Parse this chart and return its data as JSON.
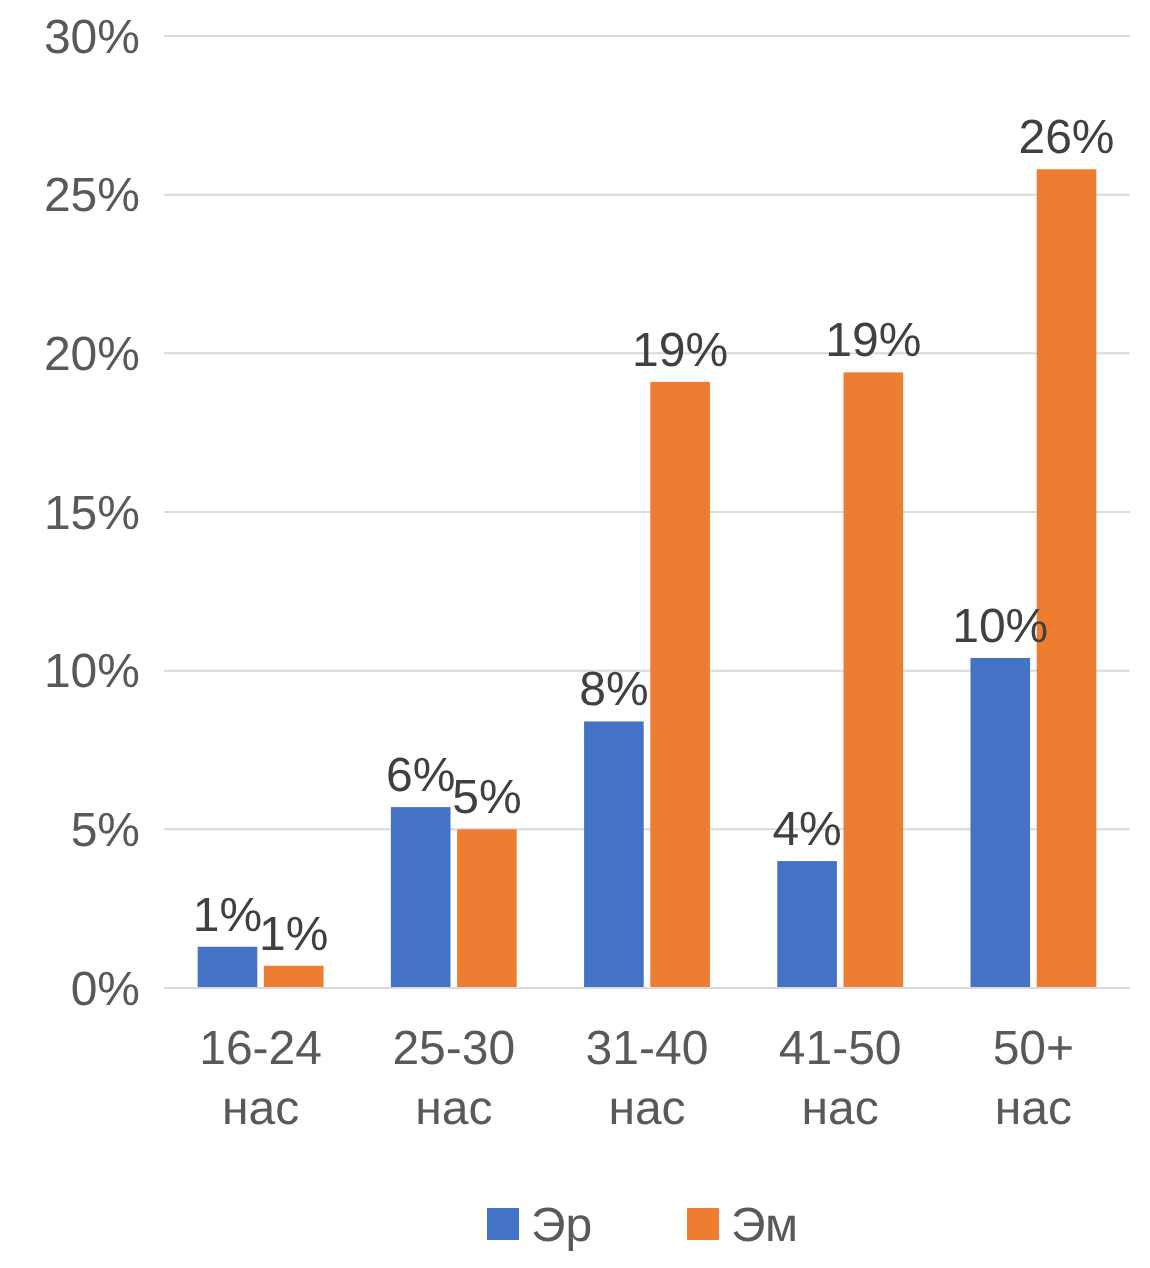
{
  "chart_data": {
    "type": "bar",
    "categories": [
      "16-24 нас",
      "25-30 нас",
      "31-40 нас",
      "41-50 нас",
      "50+ нас"
    ],
    "series": [
      {
        "name": "Эр",
        "color": "#4472c4",
        "values": [
          1.3,
          5.7,
          8.4,
          4.0,
          10.4
        ],
        "value_labels": [
          "1%",
          "6%",
          "8%",
          "4%",
          "10%"
        ]
      },
      {
        "name": "Эм",
        "color": "#ed7d31",
        "values": [
          0.7,
          5.0,
          19.1,
          19.4,
          25.8
        ],
        "value_labels": [
          "1%",
          "5%",
          "19%",
          "19%",
          "26%"
        ]
      }
    ],
    "ylim": [
      0,
      30
    ],
    "yticks": [
      {
        "value": 0,
        "label": "0%"
      },
      {
        "value": 5,
        "label": "5%"
      },
      {
        "value": 10,
        "label": "10%"
      },
      {
        "value": 15,
        "label": "15%"
      },
      {
        "value": 20,
        "label": "20%"
      },
      {
        "value": 25,
        "label": "25%"
      },
      {
        "value": 30,
        "label": "30%"
      }
    ],
    "grid": "y",
    "legend": "bottom"
  }
}
